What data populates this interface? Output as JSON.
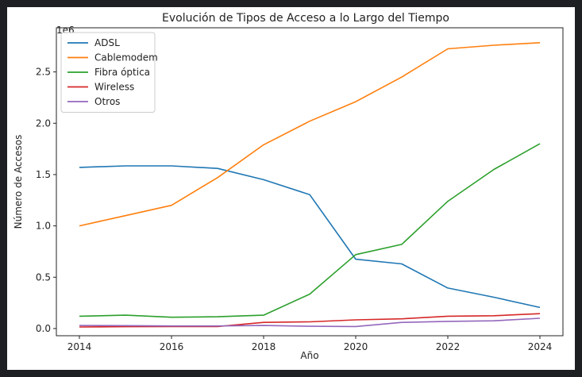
{
  "chart_data": {
    "type": "line",
    "title": "Evolución de Tipos de Acceso a lo Largo del Tiempo",
    "xlabel": "Año",
    "ylabel": "Número de Accesos",
    "y_offset_label": "1e6",
    "x": [
      2014,
      2015,
      2016,
      2017,
      2018,
      2019,
      2020,
      2021,
      2022,
      2023,
      2024
    ],
    "xlim": [
      2013.5,
      2024.5
    ],
    "ylim": [
      -0.07,
      2.93
    ],
    "x_ticks": [
      2014,
      2016,
      2018,
      2020,
      2022,
      2024
    ],
    "y_ticks": [
      0.0,
      0.5,
      1.0,
      1.5,
      2.0,
      2.5
    ],
    "y_tick_labels": [
      "0.0",
      "0.5",
      "1.0",
      "1.5",
      "2.0",
      "2.5"
    ],
    "grid": false,
    "legend_position": "top-left",
    "series": [
      {
        "name": "ADSL",
        "color": "#1f77b4",
        "values": [
          1.57,
          1.585,
          1.585,
          1.56,
          1.45,
          1.305,
          0.675,
          0.63,
          0.395,
          0.305,
          0.205
        ]
      },
      {
        "name": "Cablemodem",
        "color": "#ff7f0e",
        "values": [
          1.0,
          1.1,
          1.2,
          1.47,
          1.79,
          2.02,
          2.21,
          2.45,
          2.725,
          2.76,
          2.785
        ]
      },
      {
        "name": "Fibra óptica",
        "color": "#2ca02c",
        "values": [
          0.12,
          0.13,
          0.11,
          0.115,
          0.13,
          0.335,
          0.72,
          0.82,
          1.24,
          1.55,
          1.8
        ]
      },
      {
        "name": "Wireless",
        "color": "#d62728",
        "values": [
          0.015,
          0.018,
          0.02,
          0.02,
          0.06,
          0.065,
          0.085,
          0.095,
          0.12,
          0.125,
          0.145
        ]
      },
      {
        "name": "Otros",
        "color": "#9467bd",
        "values": [
          0.03,
          0.028,
          0.025,
          0.025,
          0.03,
          0.022,
          0.02,
          0.06,
          0.07,
          0.075,
          0.1
        ]
      }
    ]
  }
}
